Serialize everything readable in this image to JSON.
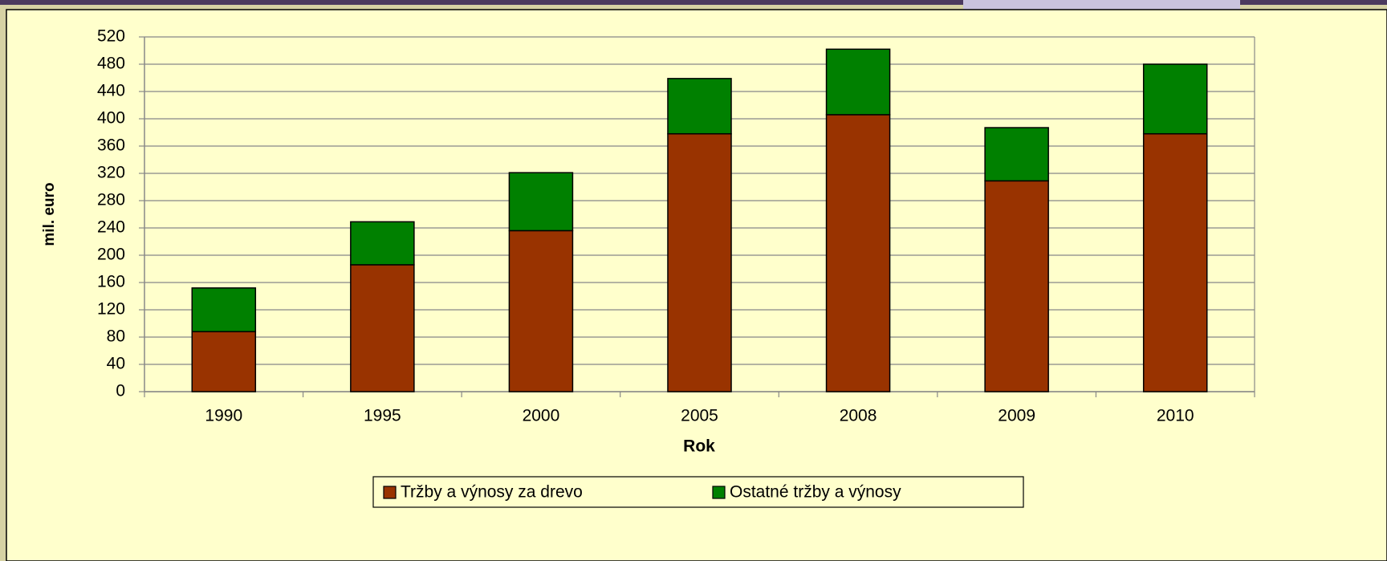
{
  "chart_data": {
    "type": "stacked_bar",
    "categories": [
      "1990",
      "1995",
      "2000",
      "2005",
      "2008",
      "2009",
      "2010"
    ],
    "series": [
      {
        "name": "Tržby a výnosy za drevo",
        "color": "#993300",
        "values": [
          88,
          186,
          236,
          378,
          406,
          309,
          378
        ]
      },
      {
        "name": "Ostatné tržby a výnosy",
        "color": "#008000",
        "values": [
          64,
          63,
          85,
          81,
          96,
          78,
          102
        ]
      }
    ],
    "x_label": "Rok",
    "y_label": "mil. euro",
    "ylim": [
      0,
      520
    ],
    "yticks": [
      0,
      40,
      80,
      120,
      160,
      200,
      240,
      280,
      320,
      360,
      400,
      440,
      480,
      520
    ],
    "grid": true,
    "legend": "bottom"
  }
}
